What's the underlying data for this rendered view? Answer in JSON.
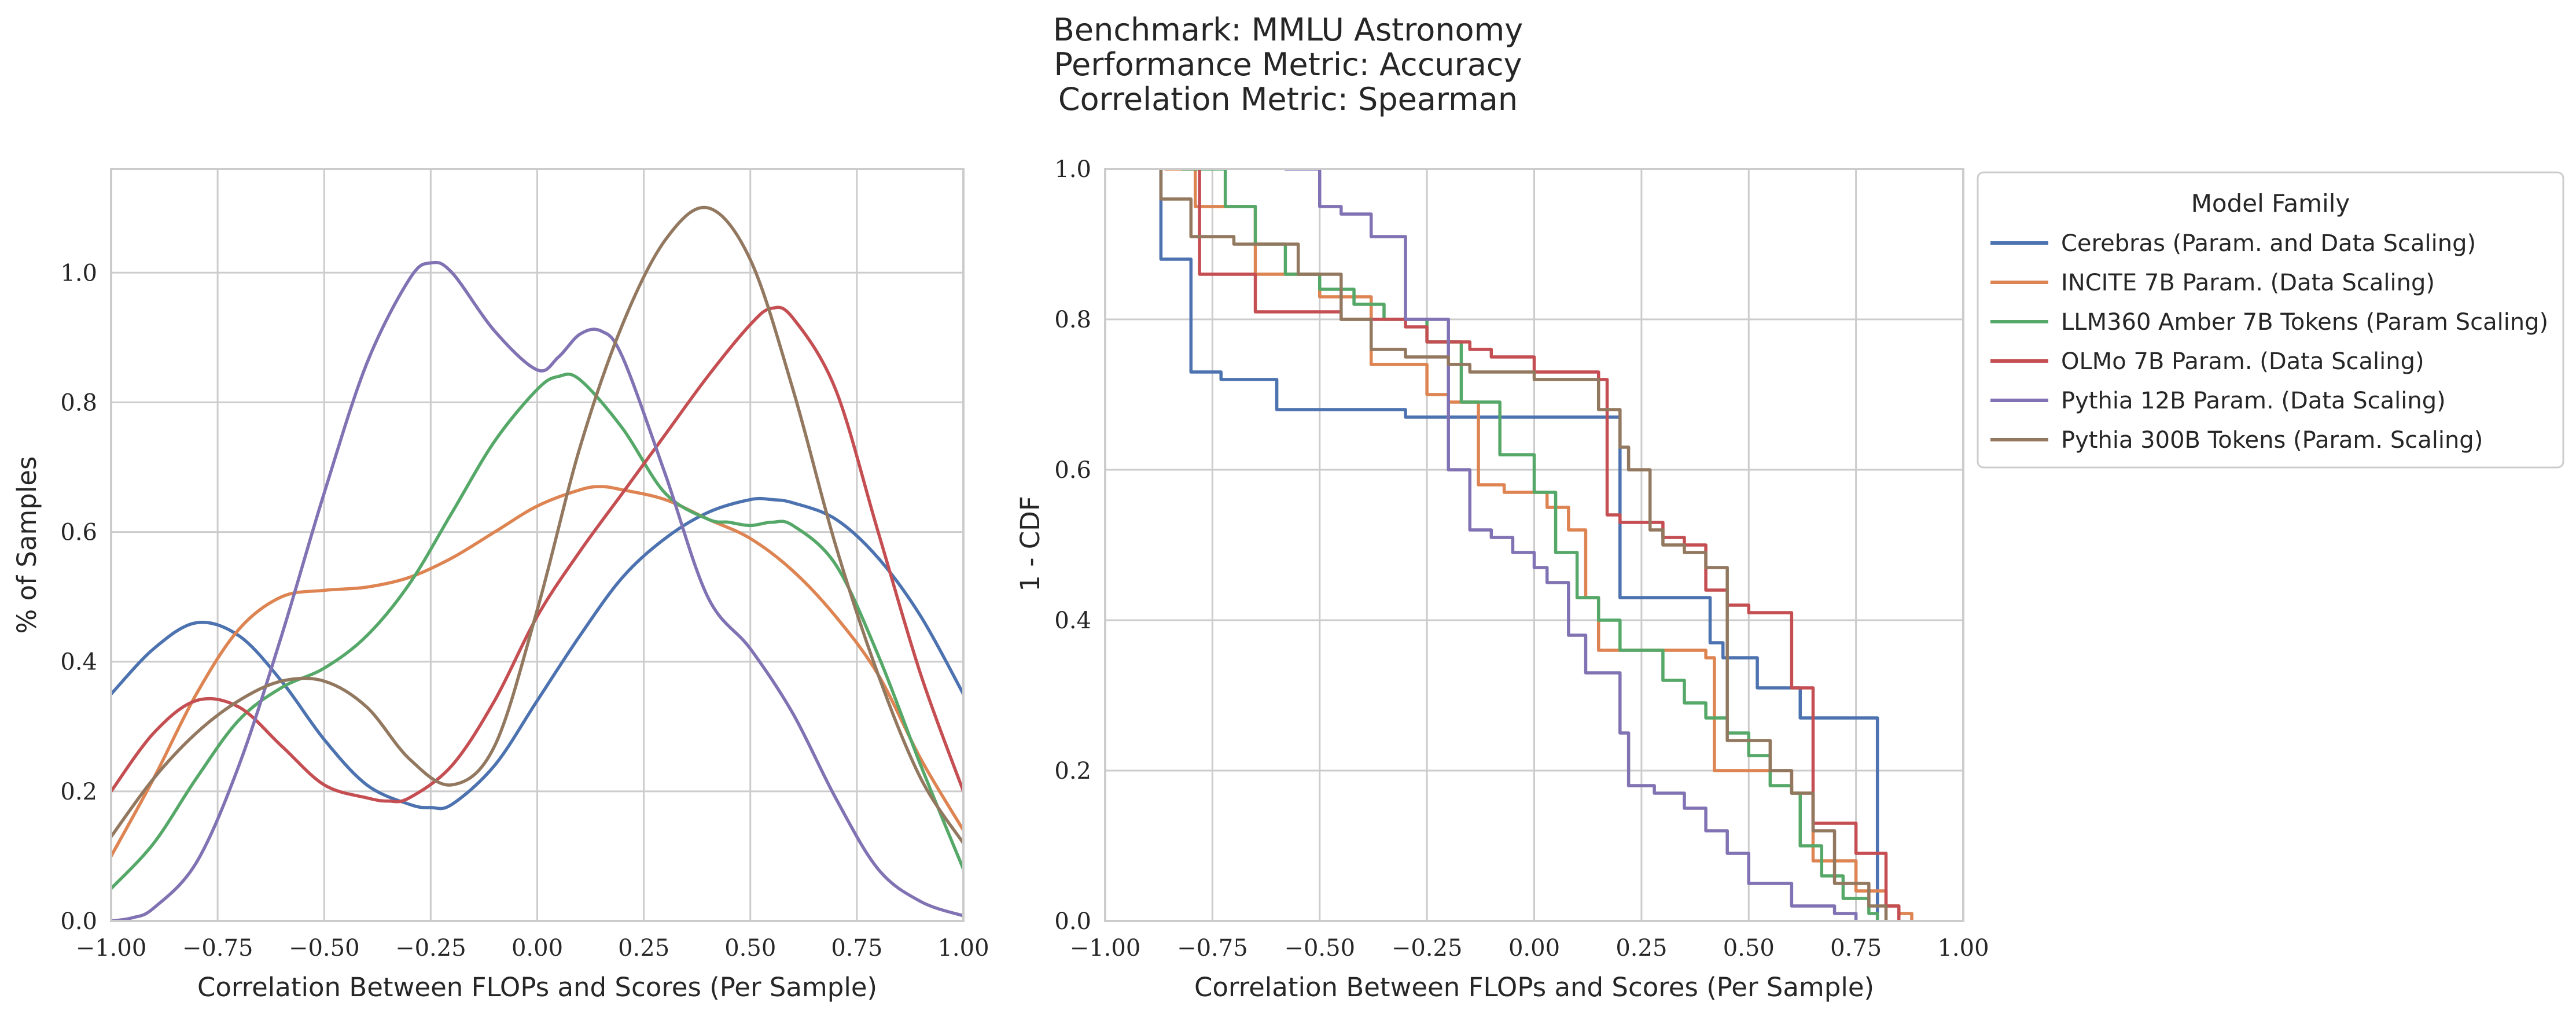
{
  "title_lines": [
    "Benchmark: MMLU Astronomy",
    "Performance Metric: Accuracy",
    "Correlation Metric: Spearman"
  ],
  "colors": {
    "Cerebras": "#4c72b0",
    "INCITE": "#dd8452",
    "LLM360": "#55a868",
    "OLMo": "#c44e52",
    "Pythia12B": "#8172b3",
    "Pythia300B": "#937860"
  },
  "chart_data": [
    {
      "type": "line",
      "xlabel": "Correlation Between FLOPs and Scores (Per Sample)",
      "ylabel": "% of Samples",
      "xlim": [
        -1.0,
        1.0
      ],
      "ylim": [
        0.0,
        1.16
      ],
      "xticks": [
        "−1.00",
        "−0.75",
        "−0.50",
        "−0.25",
        "0.00",
        "0.25",
        "0.50",
        "0.75",
        "1.00"
      ],
      "yticks": [
        "0.0",
        "0.2",
        "0.4",
        "0.6",
        "0.8",
        "1.0"
      ],
      "grid": true,
      "series": [
        {
          "key": "Cerebras",
          "x": [
            -1.0,
            -0.9,
            -0.8,
            -0.7,
            -0.6,
            -0.5,
            -0.4,
            -0.3,
            -0.25,
            -0.2,
            -0.1,
            0.0,
            0.1,
            0.2,
            0.3,
            0.4,
            0.5,
            0.55,
            0.6,
            0.7,
            0.8,
            0.9,
            1.0
          ],
          "values": [
            0.35,
            0.42,
            0.46,
            0.44,
            0.37,
            0.28,
            0.21,
            0.18,
            0.175,
            0.18,
            0.24,
            0.34,
            0.44,
            0.53,
            0.59,
            0.63,
            0.65,
            0.65,
            0.645,
            0.62,
            0.56,
            0.47,
            0.35
          ]
        },
        {
          "key": "INCITE",
          "x": [
            -1.0,
            -0.9,
            -0.8,
            -0.7,
            -0.6,
            -0.5,
            -0.4,
            -0.3,
            -0.2,
            -0.1,
            0.0,
            0.1,
            0.15,
            0.2,
            0.3,
            0.4,
            0.5,
            0.6,
            0.7,
            0.8,
            0.9,
            1.0
          ],
          "values": [
            0.1,
            0.22,
            0.35,
            0.45,
            0.5,
            0.51,
            0.515,
            0.53,
            0.56,
            0.6,
            0.64,
            0.665,
            0.67,
            0.665,
            0.65,
            0.62,
            0.59,
            0.54,
            0.47,
            0.38,
            0.25,
            0.14
          ]
        },
        {
          "key": "LLM360",
          "x": [
            -1.0,
            -0.9,
            -0.8,
            -0.7,
            -0.6,
            -0.5,
            -0.4,
            -0.3,
            -0.2,
            -0.1,
            0.0,
            0.05,
            0.1,
            0.2,
            0.3,
            0.4,
            0.45,
            0.5,
            0.55,
            0.6,
            0.7,
            0.8,
            0.9,
            1.0
          ],
          "values": [
            0.05,
            0.12,
            0.22,
            0.31,
            0.36,
            0.39,
            0.44,
            0.52,
            0.63,
            0.74,
            0.82,
            0.84,
            0.835,
            0.76,
            0.66,
            0.62,
            0.615,
            0.61,
            0.615,
            0.61,
            0.55,
            0.41,
            0.24,
            0.08
          ]
        },
        {
          "key": "OLMo",
          "x": [
            -1.0,
            -0.9,
            -0.8,
            -0.7,
            -0.6,
            -0.5,
            -0.4,
            -0.35,
            -0.3,
            -0.2,
            -0.1,
            0.0,
            0.1,
            0.2,
            0.3,
            0.4,
            0.5,
            0.55,
            0.6,
            0.7,
            0.8,
            0.9,
            1.0
          ],
          "values": [
            0.2,
            0.29,
            0.34,
            0.33,
            0.27,
            0.21,
            0.19,
            0.185,
            0.19,
            0.24,
            0.34,
            0.47,
            0.57,
            0.66,
            0.75,
            0.84,
            0.92,
            0.945,
            0.93,
            0.82,
            0.6,
            0.38,
            0.2
          ]
        },
        {
          "key": "Pythia12B",
          "x": [
            -1.0,
            -0.95,
            -0.9,
            -0.8,
            -0.7,
            -0.6,
            -0.5,
            -0.4,
            -0.3,
            -0.25,
            -0.2,
            -0.1,
            0.0,
            0.05,
            0.1,
            0.15,
            0.2,
            0.3,
            0.4,
            0.5,
            0.6,
            0.7,
            0.8,
            0.9,
            1.0
          ],
          "values": [
            0.0,
            0.005,
            0.02,
            0.09,
            0.24,
            0.44,
            0.66,
            0.86,
            0.99,
            1.015,
            1.0,
            0.91,
            0.85,
            0.87,
            0.905,
            0.91,
            0.87,
            0.69,
            0.5,
            0.42,
            0.32,
            0.19,
            0.08,
            0.03,
            0.008
          ]
        },
        {
          "key": "Pythia300B",
          "x": [
            -1.0,
            -0.9,
            -0.8,
            -0.7,
            -0.6,
            -0.5,
            -0.4,
            -0.3,
            -0.2,
            -0.1,
            0.0,
            0.1,
            0.2,
            0.3,
            0.4,
            0.5,
            0.6,
            0.7,
            0.8,
            0.9,
            1.0
          ],
          "values": [
            0.13,
            0.22,
            0.29,
            0.34,
            0.37,
            0.37,
            0.33,
            0.25,
            0.21,
            0.27,
            0.48,
            0.73,
            0.92,
            1.05,
            1.1,
            1.02,
            0.82,
            0.58,
            0.38,
            0.22,
            0.12
          ]
        }
      ]
    },
    {
      "type": "line",
      "drawstyle": "steps",
      "xlabel": "Correlation Between FLOPs and Scores (Per Sample)",
      "ylabel": "1 - CDF",
      "xlim": [
        -1.0,
        1.0
      ],
      "ylim": [
        0.0,
        1.0
      ],
      "xticks": [
        "−1.00",
        "−0.75",
        "−0.50",
        "−0.25",
        "0.00",
        "0.25",
        "0.50",
        "0.75",
        "1.00"
      ],
      "yticks": [
        "0.0",
        "0.2",
        "0.4",
        "0.6",
        "0.8",
        "1.0"
      ],
      "grid": true,
      "legend": {
        "title": "Model Family",
        "position": "outside-right-top"
      },
      "series": [
        {
          "key": "Cerebras",
          "name": "Cerebras (Param. and Data Scaling)",
          "x": [
            -0.87,
            -0.8,
            -0.73,
            -0.6,
            -0.3,
            0.1,
            0.2,
            0.41,
            0.44,
            0.52,
            0.62,
            0.8
          ],
          "values": [
            0.88,
            0.73,
            0.72,
            0.68,
            0.67,
            0.67,
            0.43,
            0.37,
            0.35,
            0.31,
            0.27,
            0.0
          ]
        },
        {
          "key": "INCITE",
          "name": "INCITE 7B Param. (Data Scaling)",
          "x": [
            -0.86,
            -0.79,
            -0.65,
            -0.5,
            -0.38,
            -0.25,
            -0.2,
            -0.13,
            -0.07,
            0.03,
            0.08,
            0.12,
            0.15,
            0.4,
            0.42,
            0.6,
            0.65,
            0.75,
            0.82,
            0.85,
            0.88
          ],
          "values": [
            1.0,
            0.95,
            0.86,
            0.83,
            0.74,
            0.7,
            0.69,
            0.58,
            0.57,
            0.55,
            0.52,
            0.43,
            0.36,
            0.35,
            0.2,
            0.17,
            0.08,
            0.04,
            0.02,
            0.01,
            0.0
          ]
        },
        {
          "key": "LLM360",
          "name": "LLM360 Amber 7B Tokens (Param Scaling)",
          "x": [
            -0.82,
            -0.72,
            -0.65,
            -0.58,
            -0.5,
            -0.42,
            -0.35,
            -0.25,
            -0.17,
            -0.08,
            0.0,
            0.05,
            0.1,
            0.15,
            0.2,
            0.3,
            0.35,
            0.4,
            0.45,
            0.5,
            0.55,
            0.6,
            0.62,
            0.67,
            0.72,
            0.78,
            0.8
          ],
          "values": [
            1.0,
            0.95,
            0.9,
            0.86,
            0.84,
            0.82,
            0.8,
            0.77,
            0.69,
            0.62,
            0.57,
            0.49,
            0.43,
            0.4,
            0.36,
            0.32,
            0.29,
            0.27,
            0.25,
            0.22,
            0.18,
            0.17,
            0.1,
            0.06,
            0.03,
            0.01,
            0.0
          ]
        },
        {
          "key": "OLMo",
          "name": "OLMo 7B Param. (Data Scaling)",
          "x": [
            -0.78,
            -0.65,
            -0.45,
            -0.3,
            -0.25,
            -0.15,
            -0.1,
            0.0,
            0.15,
            0.17,
            0.2,
            0.3,
            0.35,
            0.4,
            0.45,
            0.5,
            0.6,
            0.65,
            0.75,
            0.82,
            0.85
          ],
          "values": [
            0.86,
            0.81,
            0.8,
            0.79,
            0.77,
            0.76,
            0.75,
            0.73,
            0.72,
            0.54,
            0.53,
            0.51,
            0.5,
            0.44,
            0.42,
            0.41,
            0.31,
            0.13,
            0.09,
            0.02,
            0.0
          ]
        },
        {
          "key": "Pythia12B",
          "name": "Pythia 12B Param. (Data Scaling)",
          "x": [
            -0.58,
            -0.5,
            -0.45,
            -0.38,
            -0.3,
            -0.2,
            -0.15,
            -0.1,
            -0.05,
            0.0,
            0.03,
            0.08,
            0.12,
            0.2,
            0.22,
            0.28,
            0.35,
            0.4,
            0.45,
            0.5,
            0.6,
            0.7,
            0.75
          ],
          "values": [
            1.0,
            0.95,
            0.94,
            0.91,
            0.8,
            0.6,
            0.52,
            0.51,
            0.49,
            0.47,
            0.45,
            0.38,
            0.33,
            0.25,
            0.18,
            0.17,
            0.15,
            0.12,
            0.09,
            0.05,
            0.02,
            0.01,
            0.0
          ]
        },
        {
          "key": "Pythia300B",
          "name": "Pythia 300B Tokens (Param. Scaling)",
          "x": [
            -0.87,
            -0.8,
            -0.7,
            -0.55,
            -0.45,
            -0.38,
            -0.3,
            -0.2,
            -0.15,
            0.0,
            0.15,
            0.2,
            0.22,
            0.27,
            0.3,
            0.35,
            0.4,
            0.45,
            0.55,
            0.6,
            0.65,
            0.7,
            0.78,
            0.82
          ],
          "values": [
            0.96,
            0.91,
            0.9,
            0.86,
            0.8,
            0.76,
            0.75,
            0.74,
            0.73,
            0.72,
            0.68,
            0.63,
            0.6,
            0.52,
            0.5,
            0.49,
            0.47,
            0.24,
            0.2,
            0.17,
            0.12,
            0.05,
            0.02,
            0.0
          ]
        }
      ]
    }
  ]
}
